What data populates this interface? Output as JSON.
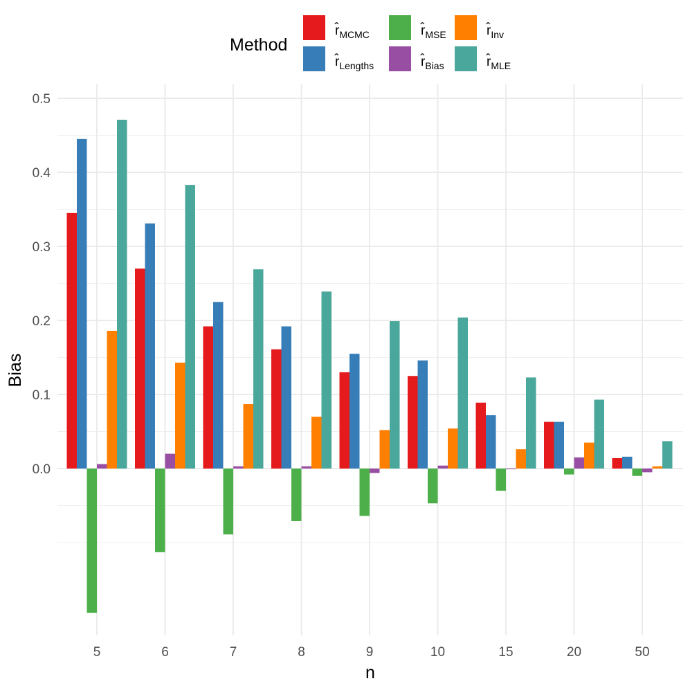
{
  "chart_data": {
    "type": "bar",
    "title": "",
    "xlabel": "n",
    "ylabel": "Bias",
    "categories": [
      "5",
      "6",
      "7",
      "8",
      "9",
      "10",
      "15",
      "20",
      "50"
    ],
    "ylim": [
      -0.22,
      0.51
    ],
    "yticks": [
      0.0,
      0.1,
      0.2,
      0.3,
      0.4,
      0.5
    ],
    "ytick_labels": [
      "0.0",
      "0.1",
      "0.2",
      "0.3",
      "0.4",
      "0.5"
    ],
    "grid": true,
    "legend": {
      "title": "Method",
      "position": "top",
      "layout": "3 columns × 2 rows"
    },
    "series": [
      {
        "name": "r̂MCMC",
        "label_base": "r̂",
        "label_sub": "MCMC",
        "color": "#E41A1C",
        "values": [
          0.345,
          0.27,
          0.192,
          0.161,
          0.13,
          0.125,
          0.089,
          0.063,
          0.014
        ]
      },
      {
        "name": "r̂Lengths",
        "label_base": "r̂",
        "label_sub": "Lengths",
        "color": "#377EB8",
        "values": [
          0.445,
          0.331,
          0.225,
          0.192,
          0.155,
          0.146,
          0.072,
          0.063,
          0.016
        ]
      },
      {
        "name": "r̂MSE",
        "label_base": "r̂",
        "label_sub": "MSE",
        "color": "#4DAF4A",
        "values": [
          -0.195,
          -0.113,
          -0.089,
          -0.071,
          -0.064,
          -0.047,
          -0.03,
          -0.008,
          -0.01
        ]
      },
      {
        "name": "r̂Bias",
        "label_base": "r̂",
        "label_sub": "Bias",
        "color": "#984EA3",
        "values": [
          0.006,
          0.02,
          0.003,
          0.003,
          -0.006,
          0.004,
          -0.001,
          0.015,
          -0.005
        ]
      },
      {
        "name": "r̂Inv",
        "label_base": "r̂",
        "label_sub": "Inv",
        "color": "#FF7F00",
        "values": [
          0.186,
          0.143,
          0.087,
          0.07,
          0.052,
          0.054,
          0.026,
          0.035,
          0.003
        ]
      },
      {
        "name": "r̂MLE",
        "label_base": "r̂",
        "label_sub": "MLE",
        "color": "#4AA79B",
        "values": [
          0.471,
          0.383,
          0.269,
          0.239,
          0.199,
          0.204,
          0.123,
          0.093,
          0.037
        ]
      }
    ],
    "legend_order": [
      0,
      2,
      4,
      1,
      3,
      5
    ]
  }
}
